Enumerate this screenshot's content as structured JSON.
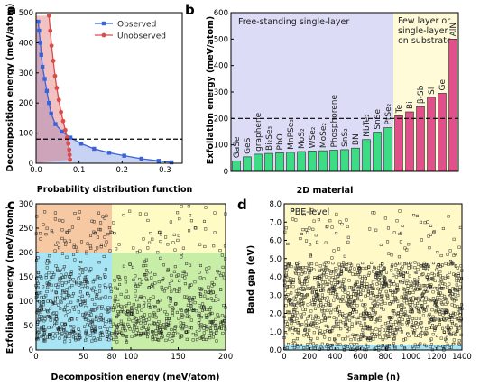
{
  "panel_labels": [
    "a",
    "b",
    "c",
    "d"
  ],
  "chart_data": [
    {
      "panel": "a",
      "type": "line",
      "xlabel": "Probability distribution function",
      "ylabel": "Decomposition energy (meV/atom)",
      "xlim": [
        0,
        0.34
      ],
      "ylim": [
        0,
        500
      ],
      "xticks": [
        "0.0",
        "0.1",
        "0.2",
        "0.3"
      ],
      "yticks": [
        "0",
        "100",
        "200",
        "300",
        "400",
        "500"
      ],
      "legend_position": "top-right",
      "threshold_y": 80,
      "series": [
        {
          "name": "Observed",
          "color": "#3a62d9",
          "marker": "square",
          "points": [
            [
              0.005,
              470
            ],
            [
              0.007,
              440
            ],
            [
              0.01,
              400
            ],
            [
              0.012,
              360
            ],
            [
              0.015,
              320
            ],
            [
              0.02,
              280
            ],
            [
              0.025,
              240
            ],
            [
              0.03,
              200
            ],
            [
              0.035,
              165
            ],
            [
              0.045,
              130
            ],
            [
              0.06,
              105
            ],
            [
              0.08,
              85
            ],
            [
              0.105,
              65
            ],
            [
              0.135,
              48
            ],
            [
              0.17,
              35
            ],
            [
              0.205,
              25
            ],
            [
              0.245,
              15
            ],
            [
              0.285,
              8
            ],
            [
              0.315,
              3
            ]
          ]
        },
        {
          "name": "Unobserved",
          "color": "#d94c4c",
          "marker": "circle",
          "points": [
            [
              0.03,
              490
            ],
            [
              0.033,
              440
            ],
            [
              0.036,
              390
            ],
            [
              0.04,
              340
            ],
            [
              0.044,
              290
            ],
            [
              0.048,
              250
            ],
            [
              0.053,
              210
            ],
            [
              0.058,
              170
            ],
            [
              0.063,
              140
            ],
            [
              0.068,
              110
            ],
            [
              0.072,
              85
            ],
            [
              0.075,
              65
            ],
            [
              0.077,
              45
            ],
            [
              0.078,
              28
            ],
            [
              0.079,
              12
            ]
          ]
        }
      ]
    },
    {
      "panel": "b",
      "type": "bar",
      "xlabel": "2D material",
      "ylabel": "Exfoliation energy (meV/atom)",
      "ylim": [
        0,
        600
      ],
      "yticks": [
        "0",
        "100",
        "200",
        "300",
        "400",
        "500",
        "600"
      ],
      "threshold_y": 200,
      "regions": [
        {
          "label": "Free-standing single-layer",
          "color": "#dcdcf7"
        },
        {
          "label": "Few layer or single-layer on substrate",
          "color": "#fffbd8"
        }
      ],
      "categories": [
        "GaSe",
        "GeS",
        "graphene",
        "Bi₂Se₃",
        "PbO",
        "MnPSe₃",
        "MoS₂",
        "WSe₂",
        "MoSe₂",
        "Phosphorene",
        "SnS₂",
        "BN",
        "NbTe₂",
        "SnSe",
        "PtSe₂",
        "Te",
        "Bi",
        "β-Sb",
        "Si",
        "Ge",
        "AlN"
      ],
      "values": [
        40,
        55,
        65,
        68,
        70,
        72,
        75,
        77,
        78,
        80,
        82,
        88,
        120,
        148,
        165,
        210,
        225,
        245,
        280,
        295,
        500
      ],
      "colors": [
        "#3ddc84",
        "#3ddc84",
        "#3ddc84",
        "#3ddc84",
        "#3ddc84",
        "#3ddc84",
        "#3ddc84",
        "#3ddc84",
        "#3ddc84",
        "#3ddc84",
        "#3ddc84",
        "#3ddc84",
        "#3ddc84",
        "#3ddc84",
        "#3ddc84",
        "#e0508a",
        "#e0508a",
        "#e0508a",
        "#e0508a",
        "#e0508a",
        "#e0508a"
      ]
    },
    {
      "panel": "c",
      "type": "scatter",
      "xlabel": "Decomposition energy (meV/atom)",
      "ylabel": "Exfoliation energy (meV/atom)",
      "xlim": [
        0,
        200
      ],
      "ylim": [
        0,
        300
      ],
      "xticks": [
        "0",
        "50",
        "80",
        "100",
        "150",
        "200"
      ],
      "yticks": [
        "0",
        "50",
        "100",
        "150",
        "200",
        "250",
        "300"
      ],
      "highlight_ticks": [
        "80",
        "200"
      ],
      "point_count": 1000
    },
    {
      "panel": "d",
      "type": "scatter",
      "xlabel": "Sample (n)",
      "ylabel": "Band gap (eV)",
      "xlim": [
        0,
        1400
      ],
      "ylim": [
        0,
        8
      ],
      "xticks": [
        "0",
        "200",
        "400",
        "600",
        "800",
        "1000",
        "1200",
        "1400"
      ],
      "yticks": [
        "0.0",
        "1.0",
        "2.0",
        "3.0",
        "4.0",
        "5.0",
        "6.0",
        "7.0",
        "8.0"
      ],
      "annotation": "PBE-level",
      "point_count": 1400
    }
  ]
}
